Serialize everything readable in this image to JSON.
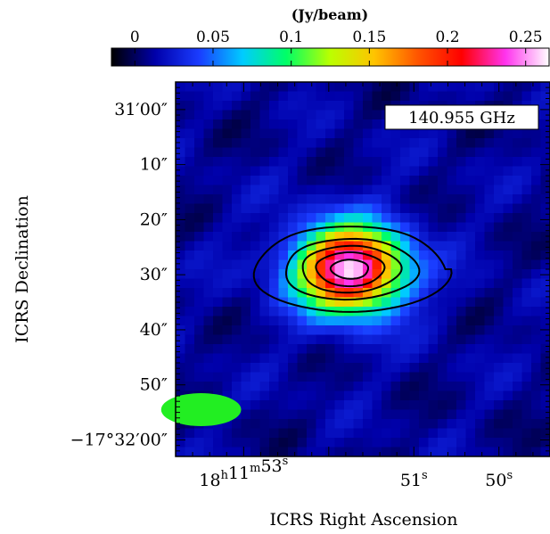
{
  "chart_data": {
    "type": "heatmap",
    "colorbar": {
      "unit": "(Jy/beam)",
      "range": [
        -0.015,
        0.265
      ],
      "ticks": [
        {
          "value": 0,
          "label": "0"
        },
        {
          "value": 0.05,
          "label": "0.05"
        },
        {
          "value": 0.1,
          "label": "0.1"
        },
        {
          "value": 0.15,
          "label": "0.15"
        },
        {
          "value": 0.2,
          "label": "0.2"
        },
        {
          "value": 0.25,
          "label": "0.25"
        }
      ]
    },
    "frequency_label": "140.955 GHz",
    "xlabel": "ICRS Right Ascension",
    "ylabel": "ICRS Declination",
    "xlim_sec": [
      53.8,
      49.4
    ],
    "ylim_arcsec_from_31m00s": [
      -5,
      63
    ],
    "xticks": [
      {
        "value": 53,
        "h": "18",
        "m": "11",
        "s": "53"
      },
      {
        "value": 51,
        "s": "51"
      },
      {
        "value": 50,
        "s": "50"
      }
    ],
    "yticks": [
      {
        "value": 0,
        "label": "31′00″"
      },
      {
        "value": 10,
        "label": "10″"
      },
      {
        "value": 20,
        "label": "20″"
      },
      {
        "value": 30,
        "label": "30″"
      },
      {
        "value": 40,
        "label": "40″"
      },
      {
        "value": 50,
        "label": "50″"
      },
      {
        "value": 60,
        "label": "−17°32′00″"
      }
    ],
    "source": {
      "ra_sec": 51.75,
      "dec_arcsec": 29,
      "peak": 0.26
    },
    "background_level": 0.01,
    "contours": [
      {
        "rx_sec": 1.12,
        "ry_arcsec": 8.0
      },
      {
        "rx_sec": 0.78,
        "ry_arcsec": 5.6
      },
      {
        "rx_sec": 0.58,
        "ry_arcsec": 4.2
      },
      {
        "rx_sec": 0.4,
        "ry_arcsec": 3.0
      },
      {
        "rx_sec": 0.22,
        "ry_arcsec": 1.7
      }
    ],
    "beam": {
      "ra_sec": 53.5,
      "dec_arcsec": 54.5,
      "rx_sec": 0.47,
      "ry_arcsec": 3.0,
      "color": "#22ee22"
    },
    "colormap": [
      "#000000",
      "#0000aa",
      "#1a3cff",
      "#00ccff",
      "#00ff66",
      "#bbff00",
      "#ffc400",
      "#ff5500",
      "#ff0000",
      "#ff33ee",
      "#ffffff"
    ]
  }
}
